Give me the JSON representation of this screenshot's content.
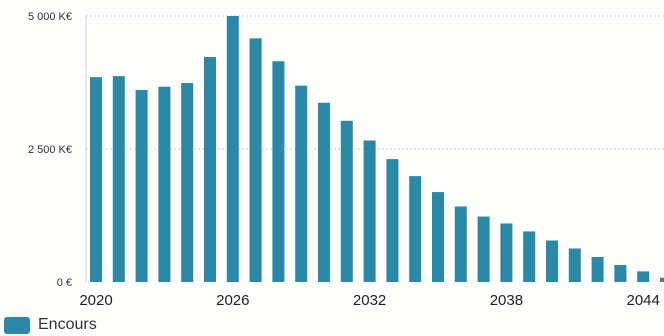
{
  "chart_data": {
    "type": "bar",
    "title": "",
    "xlabel": "",
    "ylabel": "",
    "x": [
      2020,
      2021,
      2022,
      2023,
      2024,
      2025,
      2026,
      2027,
      2028,
      2029,
      2030,
      2031,
      2032,
      2033,
      2034,
      2035,
      2036,
      2037,
      2038,
      2039,
      2040,
      2041,
      2042,
      2043,
      2044,
      2045
    ],
    "series": [
      {
        "name": "Encours",
        "values": [
          3850,
          3870,
          3610,
          3670,
          3740,
          4230,
          5000,
          4580,
          4150,
          3690,
          3370,
          3030,
          2660,
          2310,
          1990,
          1690,
          1420,
          1230,
          1100,
          950,
          780,
          630,
          470,
          320,
          200,
          80
        ]
      }
    ],
    "x_tick_labels": [
      "2020",
      "2026",
      "2032",
      "2038",
      "2044"
    ],
    "x_tick_years": [
      2020,
      2026,
      2032,
      2038,
      2044
    ],
    "y_tick_values": [
      0,
      2500,
      5000
    ],
    "y_tick_labels": [
      "0 €",
      "2 500 K€",
      "5 000 K€"
    ],
    "ylim": [
      0,
      5000
    ],
    "grid": true,
    "legend": "bottom-left",
    "colors": {
      "bar": "#2b88a6",
      "grid": "#cfcfcf",
      "axis": "#d8d8d8",
      "text": "#333333"
    }
  }
}
